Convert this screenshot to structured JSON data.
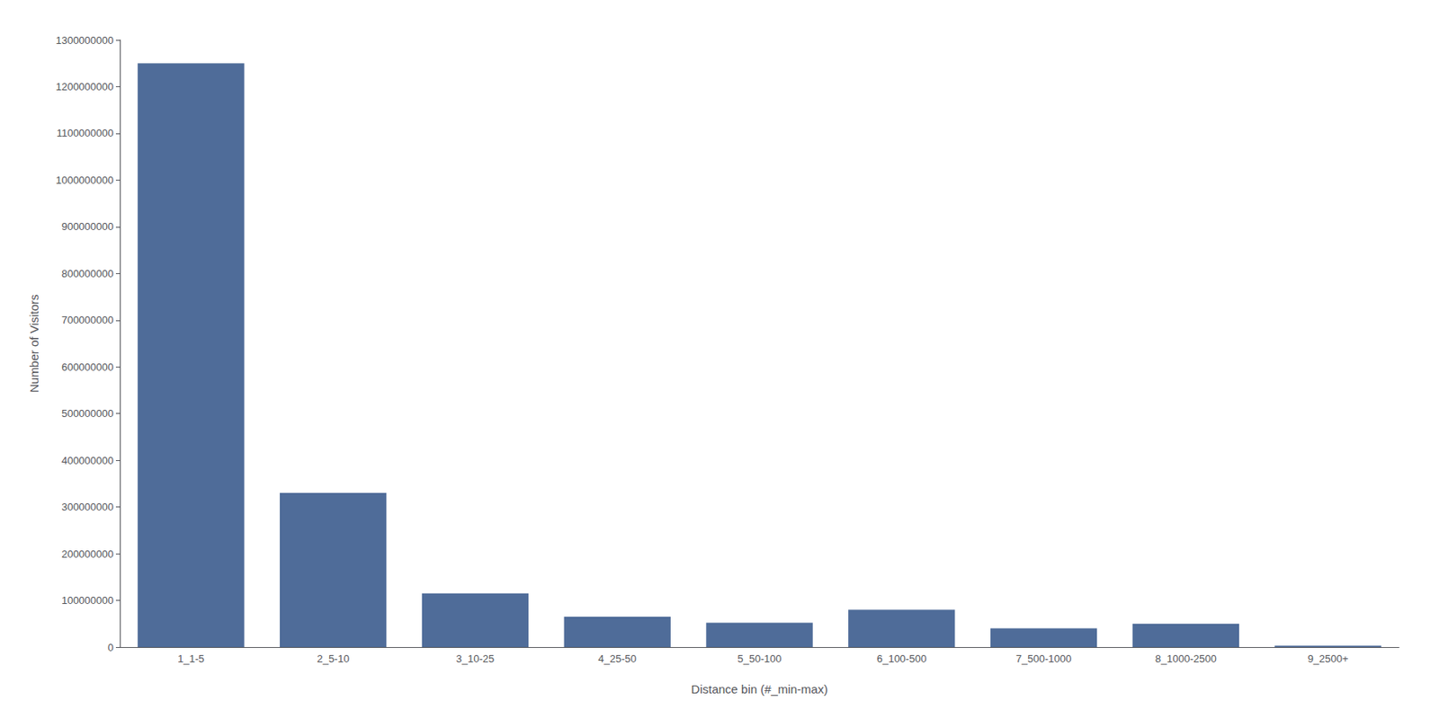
{
  "chart_data": {
    "type": "bar",
    "categories": [
      "1_1-5",
      "2_5-10",
      "3_10-25",
      "4_25-50",
      "5_50-100",
      "6_100-500",
      "7_500-1000",
      "8_1000-2500",
      "9_2500+"
    ],
    "values": [
      1250000000,
      330000000,
      115000000,
      65000000,
      52000000,
      80000000,
      40000000,
      50000000,
      3000000
    ],
    "color": "#4f6c99",
    "xlabel": "Distance bin (#_min-max)",
    "ylabel": "Number of Visitors",
    "ylim": [
      0,
      1300000000
    ],
    "yticks": [
      0,
      100000000,
      200000000,
      300000000,
      400000000,
      500000000,
      600000000,
      700000000,
      800000000,
      900000000,
      1000000000,
      1100000000,
      1200000000,
      1300000000
    ],
    "grid": false
  }
}
